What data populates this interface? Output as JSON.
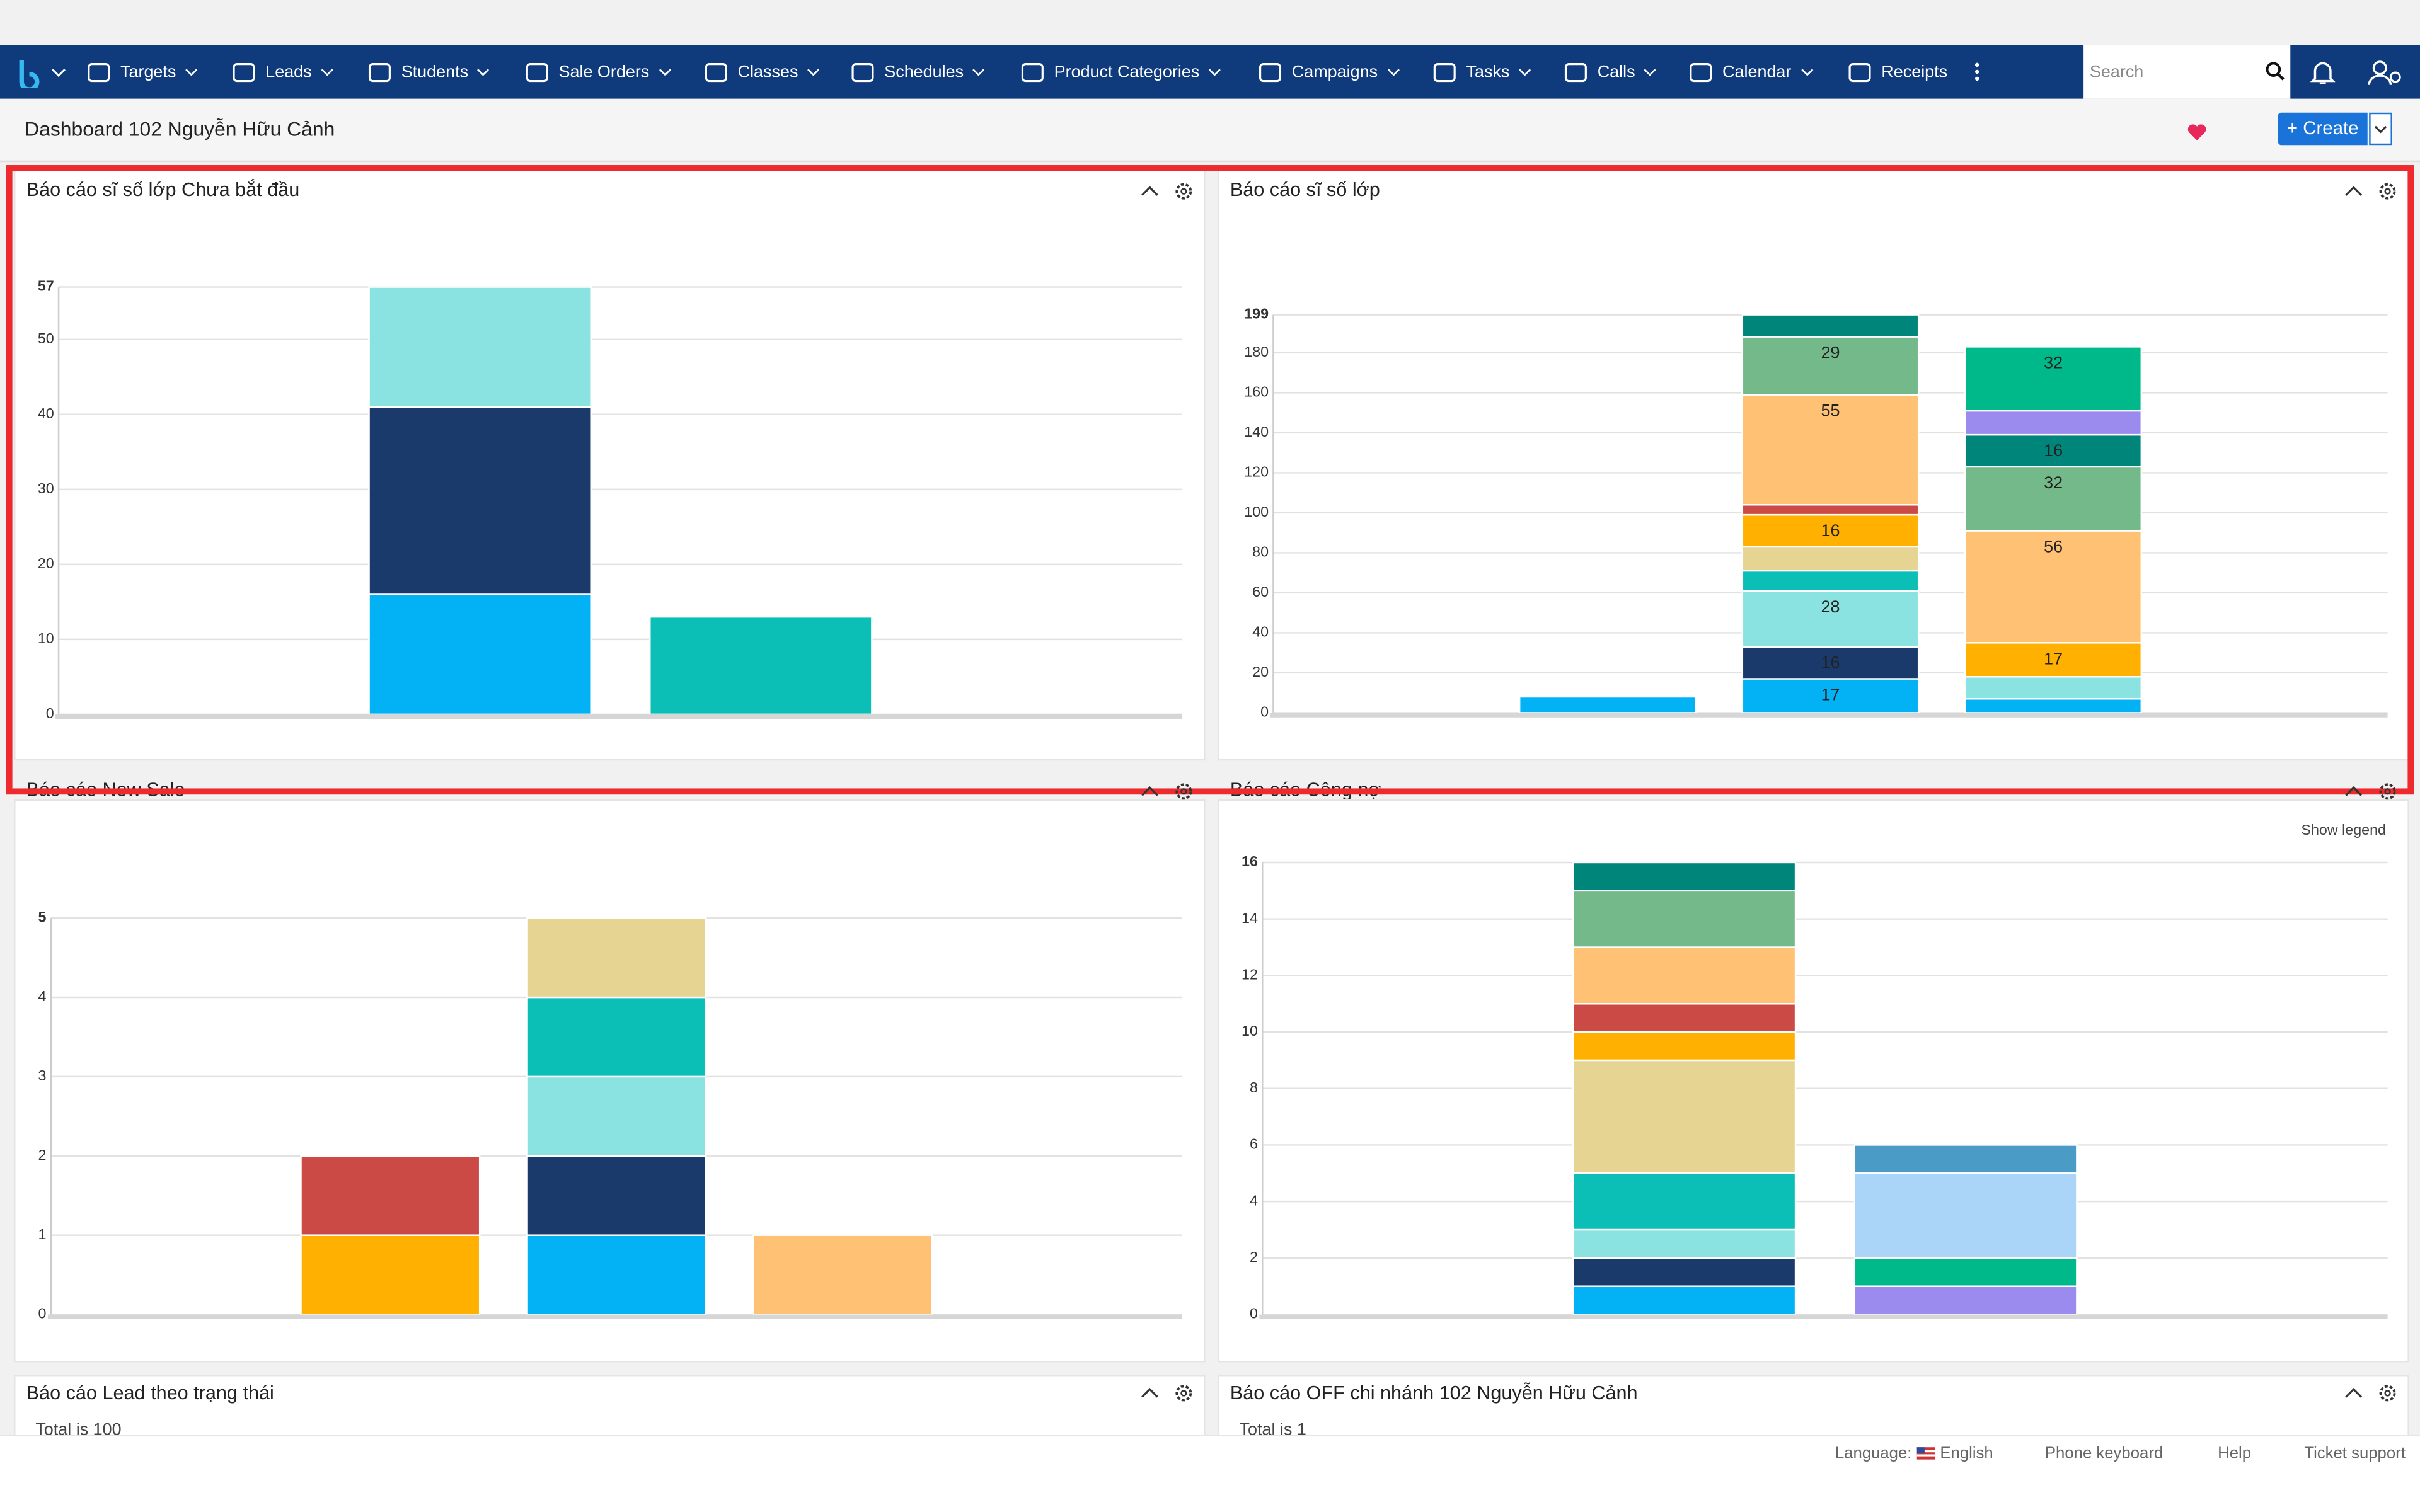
{
  "nav": {
    "items": [
      "Targets",
      "Leads",
      "Students",
      "Sale Orders",
      "Classes",
      "Schedules",
      "Product Categories",
      "Campaigns",
      "Tasks",
      "Calls",
      "Calendar",
      "Receipts"
    ],
    "search_placeholder": "Search"
  },
  "header": {
    "title": "Dashboard 102 Nguyễn Hữu Cảnh",
    "create": "+ Create"
  },
  "chart_data": [
    {
      "type": "bar",
      "stacked": true,
      "title": "Báo cáo sĩ số lớp Chưa bắt đầu",
      "categories": [
        null,
        null,
        null,
        null
      ],
      "ylim": [
        0,
        57
      ],
      "yticks": [
        0,
        10,
        20,
        30,
        40,
        50,
        57
      ],
      "grid": true,
      "data_labels": false,
      "series": [
        {
          "color": "#03b1f5",
          "values": [
            null,
            16,
            null,
            null
          ]
        },
        {
          "color": "#1b3a6c",
          "values": [
            null,
            25,
            null,
            null
          ]
        },
        {
          "color": "#8ae3e0",
          "values": [
            null,
            16,
            null,
            null
          ]
        },
        {
          "color": "#0bbfb7",
          "values": [
            null,
            null,
            13,
            null
          ]
        }
      ]
    },
    {
      "type": "bar",
      "stacked": true,
      "title": "Báo cáo sĩ số lớp",
      "categories": [
        null,
        null,
        null,
        null,
        null
      ],
      "ylim": [
        0,
        199
      ],
      "yticks": [
        0,
        20,
        40,
        60,
        80,
        100,
        120,
        140,
        160,
        180,
        199
      ],
      "grid": true,
      "data_labels": true,
      "series": [
        {
          "color": "#03b1f5",
          "values": [
            null,
            8,
            17,
            7,
            null
          ]
        },
        {
          "color": "#1b3a6c",
          "values": [
            null,
            null,
            16,
            null,
            null
          ]
        },
        {
          "color": "#8ae3e0",
          "values": [
            null,
            null,
            28,
            11,
            null
          ]
        },
        {
          "color": "#0bbfb7",
          "values": [
            null,
            null,
            10,
            null,
            null
          ]
        },
        {
          "color": "#e6d592",
          "values": [
            null,
            null,
            12,
            null,
            null
          ]
        },
        {
          "color": "#ffb000",
          "values": [
            null,
            null,
            16,
            17,
            null
          ]
        },
        {
          "color": "#cc4a45",
          "values": [
            null,
            null,
            5,
            null,
            null
          ]
        },
        {
          "color": "#ffc174",
          "values": [
            null,
            null,
            55,
            56,
            null
          ]
        },
        {
          "color": "#74b98a",
          "values": [
            null,
            null,
            29,
            32,
            null
          ]
        },
        {
          "color": "#00857a",
          "values": [
            null,
            null,
            11,
            16,
            null
          ]
        },
        {
          "color": "#9b8bef",
          "values": [
            null,
            null,
            null,
            12,
            null
          ]
        },
        {
          "color": "#00b98a",
          "values": [
            null,
            null,
            null,
            32,
            null
          ]
        }
      ]
    },
    {
      "type": "bar",
      "stacked": true,
      "title": "Báo cáo New Sale",
      "categories": [
        null,
        null,
        null,
        null,
        null
      ],
      "ylim": [
        0,
        5
      ],
      "yticks": [
        0,
        1,
        2,
        3,
        4,
        5
      ],
      "grid": true,
      "data_labels": false,
      "series": [
        {
          "color": "#03b1f5",
          "values": [
            null,
            null,
            1,
            null,
            null
          ]
        },
        {
          "color": "#1b3a6c",
          "values": [
            null,
            null,
            1,
            null,
            null
          ]
        },
        {
          "color": "#8ae3e0",
          "values": [
            null,
            null,
            1,
            null,
            null
          ]
        },
        {
          "color": "#0bbfb7",
          "values": [
            null,
            null,
            1,
            null,
            null
          ]
        },
        {
          "color": "#e6d592",
          "values": [
            null,
            null,
            1,
            null,
            null
          ]
        },
        {
          "color": "#ffb000",
          "values": [
            null,
            1,
            null,
            null,
            null
          ]
        },
        {
          "color": "#cc4a45",
          "values": [
            null,
            1,
            null,
            null,
            null
          ]
        },
        {
          "color": "#ffc174",
          "values": [
            null,
            null,
            null,
            1,
            null
          ]
        }
      ]
    },
    {
      "type": "bar",
      "stacked": true,
      "title": "Báo cáo Công nợ",
      "legend_toggle": "Show legend",
      "categories": [
        null,
        null,
        null,
        null
      ],
      "ylim": [
        0,
        16
      ],
      "yticks": [
        0,
        2,
        4,
        6,
        8,
        10,
        12,
        14,
        16
      ],
      "grid": true,
      "data_labels": false,
      "series": [
        {
          "color": "#03b1f5",
          "values": [
            null,
            1,
            null,
            null
          ]
        },
        {
          "color": "#1b3a6c",
          "values": [
            null,
            1,
            null,
            null
          ]
        },
        {
          "color": "#8ae3e0",
          "values": [
            null,
            1,
            null,
            null
          ]
        },
        {
          "color": "#0bbfb7",
          "values": [
            null,
            2,
            null,
            null
          ]
        },
        {
          "color": "#e6d592",
          "values": [
            null,
            4,
            null,
            null
          ]
        },
        {
          "color": "#ffb000",
          "values": [
            null,
            1,
            null,
            null
          ]
        },
        {
          "color": "#cc4a45",
          "values": [
            null,
            1,
            null,
            null
          ]
        },
        {
          "color": "#ffc174",
          "values": [
            null,
            2,
            null,
            null
          ]
        },
        {
          "color": "#74b98a",
          "values": [
            null,
            2,
            null,
            null
          ]
        },
        {
          "color": "#00857a",
          "values": [
            null,
            1,
            null,
            null
          ]
        },
        {
          "color": "#9b8bef",
          "values": [
            null,
            null,
            1,
            null
          ]
        },
        {
          "color": "#00b98a",
          "values": [
            null,
            null,
            1,
            null
          ]
        },
        {
          "color": "#aad4f8",
          "values": [
            null,
            null,
            3,
            null
          ]
        },
        {
          "color": "#4a9cc7",
          "values": [
            null,
            null,
            1,
            null
          ]
        }
      ]
    }
  ],
  "panels": [
    {
      "title": "Báo cáo Lead theo trạng thái",
      "total": "Total is 100"
    },
    {
      "title": "Báo cáo OFF chi nhánh 102 Nguyễn Hữu Cảnh",
      "total": "Total is 1"
    }
  ],
  "footer": {
    "language_label": "Language:",
    "language": "English",
    "phone_keyboard": "Phone keyboard",
    "help": "Help",
    "ticket": "Ticket support"
  }
}
